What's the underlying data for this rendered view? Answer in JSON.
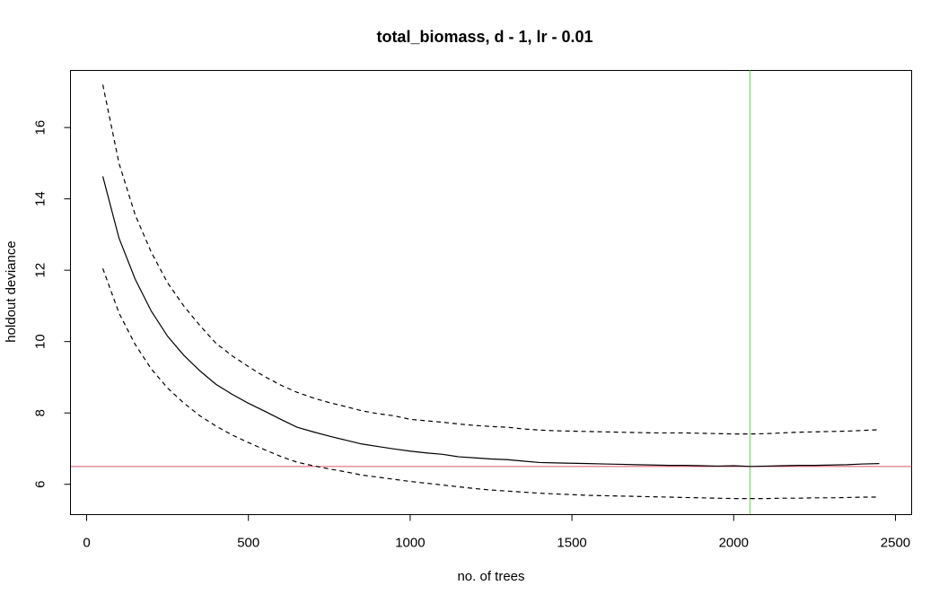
{
  "chart_data": {
    "type": "line",
    "title": "total_biomass, d - 1, lr - 0.01",
    "xlabel": "no. of trees",
    "ylabel": "holdout deviance",
    "xlim": [
      -50,
      2550
    ],
    "ylim": [
      5.15,
      17.6
    ],
    "xticks": [
      0,
      500,
      1000,
      1500,
      2000,
      2500
    ],
    "yticks": [
      6,
      8,
      10,
      12,
      14,
      16
    ],
    "grid": false,
    "x": [
      50,
      100,
      150,
      200,
      250,
      300,
      350,
      400,
      450,
      500,
      550,
      600,
      650,
      700,
      750,
      800,
      850,
      900,
      950,
      1000,
      1050,
      1100,
      1150,
      1200,
      1250,
      1300,
      1350,
      1400,
      1450,
      1500,
      1550,
      1600,
      1650,
      1700,
      1750,
      1800,
      1850,
      1900,
      1950,
      2000,
      2050,
      2100,
      2150,
      2200,
      2250,
      2300,
      2350,
      2400,
      2450
    ],
    "series": [
      {
        "style": "solid",
        "color": "#000000",
        "values": [
          14.63,
          12.9,
          11.75,
          10.85,
          10.15,
          9.62,
          9.18,
          8.8,
          8.52,
          8.27,
          8.05,
          7.82,
          7.6,
          7.47,
          7.35,
          7.24,
          7.13,
          7.06,
          6.99,
          6.93,
          6.88,
          6.84,
          6.77,
          6.74,
          6.71,
          6.69,
          6.65,
          6.61,
          6.6,
          6.59,
          6.58,
          6.57,
          6.56,
          6.55,
          6.54,
          6.53,
          6.53,
          6.52,
          6.51,
          6.52,
          6.5,
          6.51,
          6.52,
          6.53,
          6.53,
          6.54,
          6.55,
          6.57,
          6.58
        ]
      },
      {
        "style": "dashed",
        "color": "#000000",
        "values": [
          17.2,
          15.0,
          13.55,
          12.5,
          11.65,
          11.0,
          10.45,
          9.95,
          9.6,
          9.3,
          9.02,
          8.78,
          8.58,
          8.42,
          8.29,
          8.18,
          8.06,
          7.98,
          7.92,
          7.82,
          7.78,
          7.74,
          7.69,
          7.65,
          7.62,
          7.6,
          7.55,
          7.52,
          7.5,
          7.49,
          7.48,
          7.47,
          7.46,
          7.45,
          7.44,
          7.44,
          7.44,
          7.43,
          7.42,
          7.41,
          7.41,
          7.42,
          7.44,
          7.46,
          7.47,
          7.48,
          7.49,
          7.51,
          7.53
        ]
      },
      {
        "style": "dashed",
        "color": "#000000",
        "values": [
          12.05,
          10.8,
          9.92,
          9.23,
          8.7,
          8.28,
          7.92,
          7.63,
          7.38,
          7.17,
          6.97,
          6.78,
          6.62,
          6.52,
          6.43,
          6.35,
          6.26,
          6.2,
          6.14,
          6.08,
          6.03,
          5.98,
          5.93,
          5.88,
          5.84,
          5.81,
          5.78,
          5.75,
          5.73,
          5.71,
          5.69,
          5.68,
          5.67,
          5.66,
          5.65,
          5.64,
          5.63,
          5.62,
          5.61,
          5.6,
          5.6,
          5.6,
          5.61,
          5.61,
          5.62,
          5.62,
          5.63,
          5.64,
          5.64
        ]
      }
    ],
    "hlines": [
      {
        "y": 6.5,
        "color": "#df536b"
      }
    ],
    "vlines": [
      {
        "x": 2050,
        "color": "#61d04f"
      }
    ]
  }
}
